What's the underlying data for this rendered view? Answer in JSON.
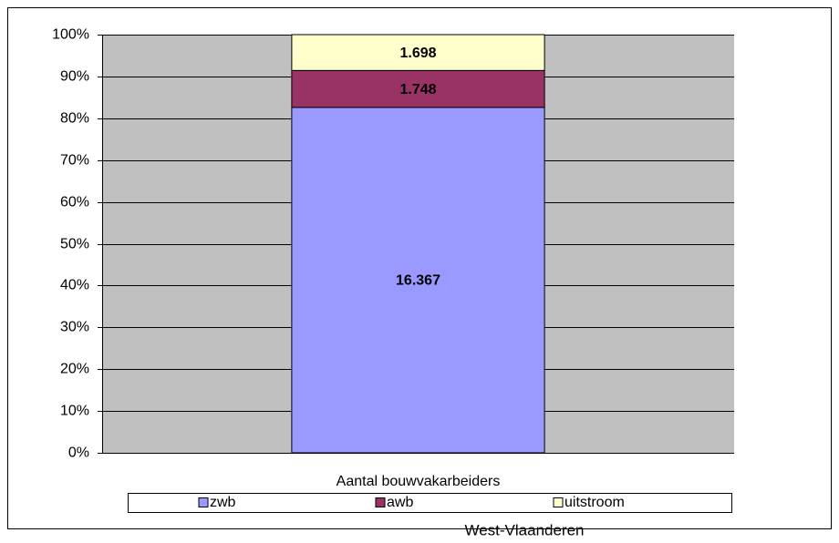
{
  "chart_data": {
    "type": "stacked_bar",
    "stacking": "percent",
    "title": "West-Vlaanderen",
    "categories": [
      "Aantal bouwvakarbeiders"
    ],
    "series": [
      {
        "name": "zwb",
        "color": "#9999ff",
        "values": [
          16367
        ],
        "value_labels": [
          "16.367"
        ]
      },
      {
        "name": "awb",
        "color": "#993366",
        "values": [
          1748
        ],
        "value_labels": [
          "1.748"
        ]
      },
      {
        "name": "uitstroom",
        "color": "#ffffcc",
        "values": [
          1698
        ],
        "value_labels": [
          "1.698"
        ]
      }
    ],
    "ylim": [
      0,
      100
    ],
    "yticks": [
      {
        "value": 0,
        "label": "0%"
      },
      {
        "value": 10,
        "label": "10%"
      },
      {
        "value": 20,
        "label": "20%"
      },
      {
        "value": 30,
        "label": "30%"
      },
      {
        "value": 40,
        "label": "40%"
      },
      {
        "value": 50,
        "label": "50%"
      },
      {
        "value": 60,
        "label": "60%"
      },
      {
        "value": 70,
        "label": "70%"
      },
      {
        "value": 80,
        "label": "80%"
      },
      {
        "value": 90,
        "label": "90%"
      },
      {
        "value": 100,
        "label": "100%"
      }
    ],
    "grid": true,
    "plot_background": "#c0c0c0",
    "legend": "bottom"
  }
}
